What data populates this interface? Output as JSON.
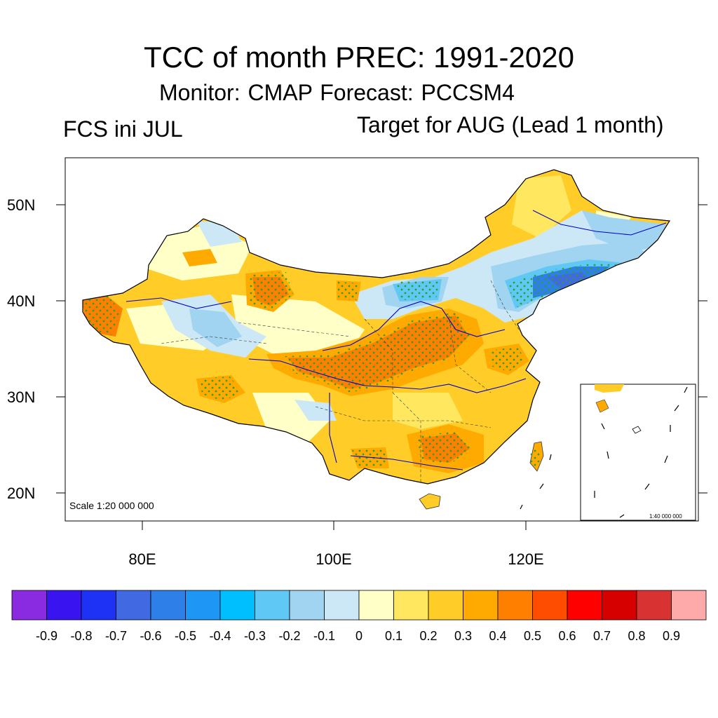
{
  "title": "TCC of month PREC: 1991-2020",
  "subtitle": "Monitor: CMAP   Forecast: PCCSM4",
  "left_label": "FCS ini JUL",
  "right_label": "Target for AUG (Lead 1 month)",
  "scale_label": "Scale 1:20 000 000",
  "inset_scale_label": "1:40 000 000",
  "lat_labels": [
    "50N",
    "40N",
    "30N",
    "20N"
  ],
  "lon_labels": [
    "80E",
    "100E",
    "120E"
  ],
  "colorbar": {
    "labels": [
      "-0.9",
      "-0.8",
      "-0.7",
      "-0.6",
      "-0.5",
      "-0.4",
      "-0.3",
      "-0.2",
      "-0.1",
      "0",
      "0.1",
      "0.2",
      "0.3",
      "0.4",
      "0.5",
      "0.6",
      "0.7",
      "0.8",
      "0.9"
    ],
    "colors": [
      "#8a2be2",
      "#3a14f0",
      "#1e32f5",
      "#4169e1",
      "#2e7fe8",
      "#1e96f5",
      "#00bfff",
      "#60c8f5",
      "#a0d4f0",
      "#cce8f6",
      "#ffffc8",
      "#ffe860",
      "#ffcc28",
      "#ffaa00",
      "#ff8000",
      "#ff4d00",
      "#ff0000",
      "#d70000",
      "#d83232",
      "#ffaaaa"
    ]
  },
  "colors": {
    "stipple": "#2ca02c",
    "boundary": "#0000cc",
    "province": "#333333"
  }
}
